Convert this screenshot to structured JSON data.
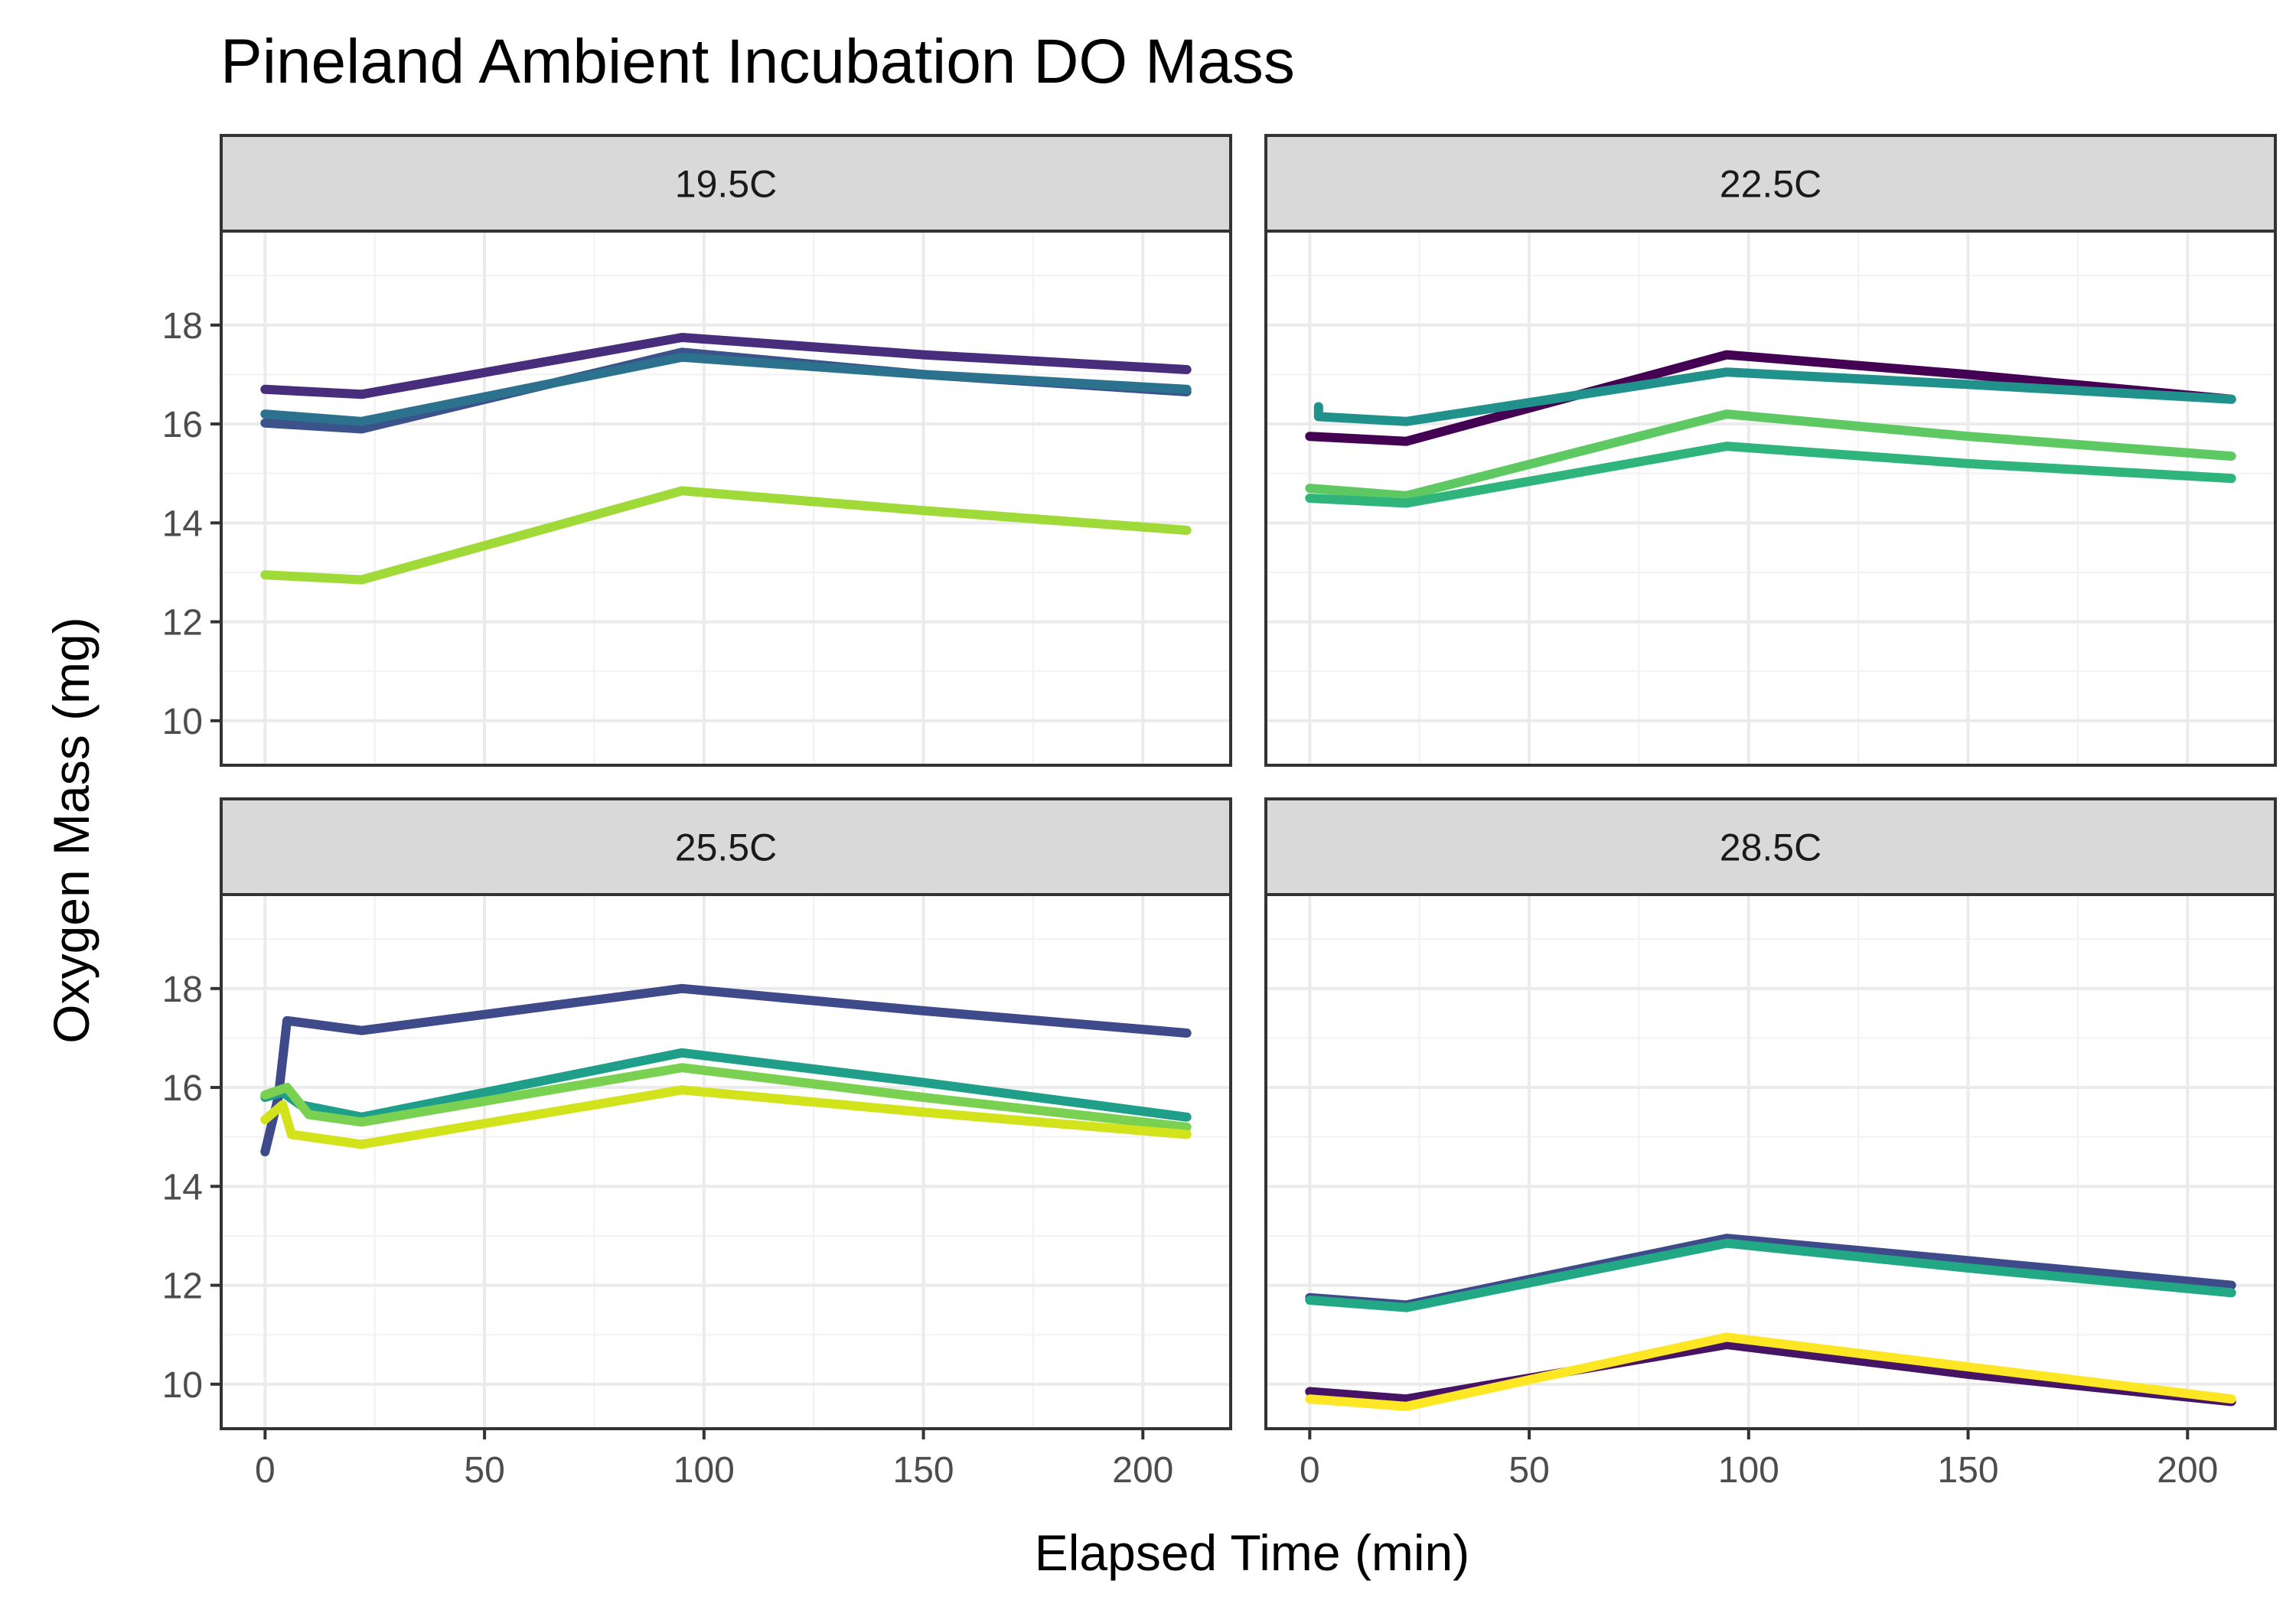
{
  "chart_data": {
    "type": "line",
    "title": "Pineland Ambient Incubation DO Mass",
    "xlabel": "Elapsed Time (min)",
    "ylabel": "Oxygen Mass (mg)",
    "xlim": [
      -10,
      220
    ],
    "ylim": [
      9.1,
      19.9
    ],
    "x_ticks": [
      0,
      50,
      100,
      150,
      200
    ],
    "y_ticks": [
      10,
      12,
      14,
      16,
      18
    ],
    "grid": true,
    "legend": "none",
    "panels": [
      {
        "label": "19.5C",
        "series": [
          {
            "color": "#472d7b",
            "points": [
              [
                0,
                16.7
              ],
              [
                22,
                16.6
              ],
              [
                95,
                17.75
              ],
              [
                150,
                17.4
              ],
              [
                210,
                17.1
              ]
            ]
          },
          {
            "color": "#3b528b",
            "points": [
              [
                0,
                16.02
              ],
              [
                22,
                15.9
              ],
              [
                95,
                17.45
              ],
              [
                150,
                17.0
              ],
              [
                210,
                16.65
              ]
            ]
          },
          {
            "color": "#2c728e",
            "points": [
              [
                0,
                16.2
              ],
              [
                22,
                16.05
              ],
              [
                95,
                17.35
              ],
              [
                150,
                17.0
              ],
              [
                210,
                16.7
              ]
            ]
          },
          {
            "color": "#a0da39",
            "points": [
              [
                0,
                12.95
              ],
              [
                22,
                12.85
              ],
              [
                95,
                14.65
              ],
              [
                150,
                14.25
              ],
              [
                210,
                13.85
              ]
            ]
          }
        ]
      },
      {
        "label": "22.5C",
        "series": [
          {
            "color": "#440154",
            "points": [
              [
                0,
                15.75
              ],
              [
                22,
                15.65
              ],
              [
                95,
                17.4
              ],
              [
                150,
                17.0
              ],
              [
                210,
                16.5
              ]
            ]
          },
          {
            "color": "#21918c",
            "points": [
              [
                2,
                16.35
              ],
              [
                2,
                16.15
              ],
              [
                22,
                16.05
              ],
              [
                95,
                17.05
              ],
              [
                150,
                16.8
              ],
              [
                210,
                16.5
              ]
            ]
          },
          {
            "color": "#5ec962",
            "points": [
              [
                0,
                14.7
              ],
              [
                22,
                14.55
              ],
              [
                95,
                16.2
              ],
              [
                150,
                15.75
              ],
              [
                210,
                15.35
              ]
            ]
          },
          {
            "color": "#2fb47c",
            "points": [
              [
                0,
                14.5
              ],
              [
                22,
                14.4
              ],
              [
                95,
                15.55
              ],
              [
                150,
                15.2
              ],
              [
                210,
                14.9
              ]
            ]
          }
        ]
      },
      {
        "label": "25.5C",
        "series": [
          {
            "color": "#3e4a89",
            "points": [
              [
                0,
                14.7
              ],
              [
                3,
                15.8
              ],
              [
                5,
                17.35
              ],
              [
                22,
                17.15
              ],
              [
                95,
                18.0
              ],
              [
                150,
                17.55
              ],
              [
                210,
                17.1
              ]
            ]
          },
          {
            "color": "#1f9e89",
            "points": [
              [
                0,
                15.8
              ],
              [
                4,
                15.9
              ],
              [
                8,
                15.65
              ],
              [
                22,
                15.4
              ],
              [
                95,
                16.7
              ],
              [
                150,
                16.1
              ],
              [
                210,
                15.4
              ]
            ]
          },
          {
            "color": "#7ad151",
            "points": [
              [
                0,
                15.85
              ],
              [
                5,
                16.0
              ],
              [
                10,
                15.45
              ],
              [
                22,
                15.3
              ],
              [
                95,
                16.4
              ],
              [
                150,
                15.8
              ],
              [
                210,
                15.2
              ]
            ]
          },
          {
            "color": "#d2e21b",
            "points": [
              [
                0,
                15.35
              ],
              [
                4,
                15.65
              ],
              [
                6,
                15.05
              ],
              [
                22,
                14.85
              ],
              [
                95,
                15.95
              ],
              [
                150,
                15.5
              ],
              [
                210,
                15.05
              ]
            ]
          }
        ]
      },
      {
        "label": "28.5C",
        "series": [
          {
            "color": "#3e4a89",
            "points": [
              [
                0,
                11.75
              ],
              [
                22,
                11.6
              ],
              [
                95,
                12.95
              ],
              [
                150,
                12.5
              ],
              [
                210,
                12.0
              ]
            ]
          },
          {
            "color": "#22a884",
            "points": [
              [
                0,
                11.7
              ],
              [
                22,
                11.55
              ],
              [
                95,
                12.85
              ],
              [
                150,
                12.35
              ],
              [
                210,
                11.85
              ]
            ]
          },
          {
            "color": "#471365",
            "points": [
              [
                0,
                9.85
              ],
              [
                22,
                9.7
              ],
              [
                95,
                10.8
              ],
              [
                150,
                10.2
              ],
              [
                210,
                9.65
              ]
            ]
          },
          {
            "color": "#fde725",
            "points": [
              [
                0,
                9.7
              ],
              [
                22,
                9.55
              ],
              [
                95,
                10.95
              ],
              [
                150,
                10.35
              ],
              [
                210,
                9.7
              ]
            ]
          }
        ]
      }
    ]
  }
}
